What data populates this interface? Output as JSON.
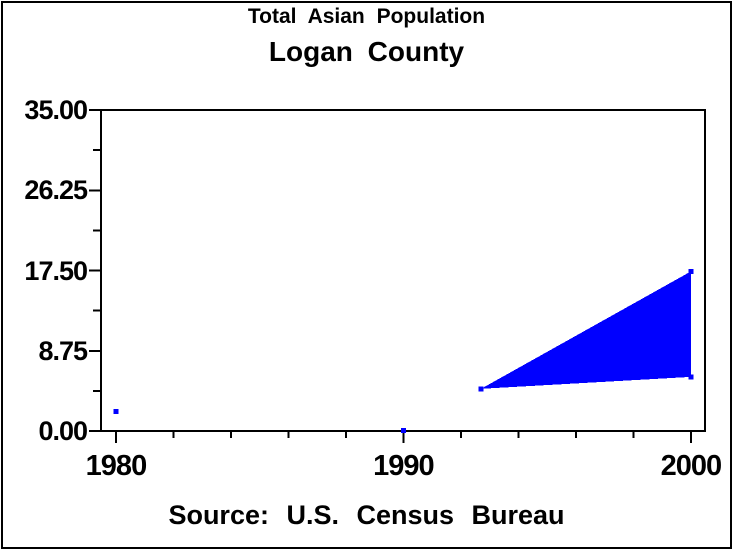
{
  "page": {
    "background_color": "#ffffff",
    "border_color": "#000000",
    "text_color": "#000000"
  },
  "chart_data": {
    "type": "area",
    "title": "Total Asian Population",
    "subtitle": "Logan County",
    "footnote": "Source: U.S. Census Bureau",
    "xlabel": "",
    "ylabel": "",
    "xlim": [
      1979.48,
      2000.49
    ],
    "ylim": [
      0,
      35
    ],
    "x_ticks": [
      1980,
      1990,
      2000
    ],
    "x_tick_labels": [
      "1980",
      "1990",
      "2000"
    ],
    "x_minor_ticks": [
      1982,
      1984,
      1986,
      1988,
      1992,
      1994,
      1996,
      1998
    ],
    "y_ticks": [
      0,
      8.75,
      17.5,
      26.25,
      35
    ],
    "y_tick_labels": [
      "0.00",
      "8.75",
      "17.50",
      "26.25",
      "35.00"
    ],
    "y_minor_ticks": [
      4.375,
      13.125,
      21.875,
      30.625
    ],
    "grid": false,
    "frame": true,
    "legend": null,
    "series_color": "#0000ff",
    "points": [
      {
        "x": 1980,
        "y": 2.1
      },
      {
        "x": 1990,
        "y": 0.05
      }
    ],
    "band": {
      "x_start": 1992.7,
      "y_start": 4.6,
      "x_end": 2000,
      "y_lower_end": 5.9,
      "y_upper_end": 17.4,
      "fill": "#0000ff"
    }
  }
}
